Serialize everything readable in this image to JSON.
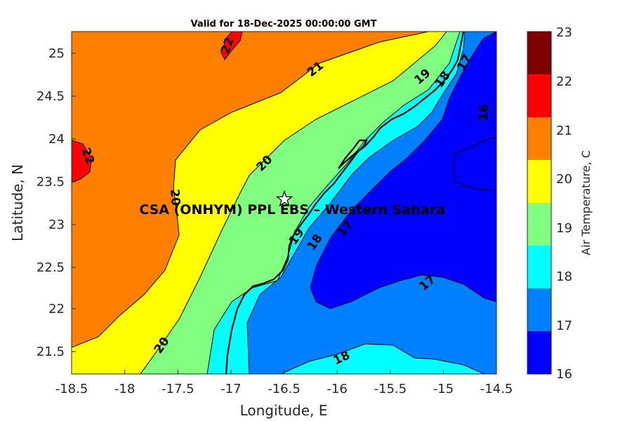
{
  "title": "Valid for 18-Dec-2025 00:00:00 GMT",
  "xlabel": "Longitude, E",
  "ylabel": "Latitude, N",
  "xticks": [
    "-18.5",
    "-18",
    "-17.5",
    "-17",
    "-16.5",
    "-16",
    "-15.5",
    "-15",
    "-14.5"
  ],
  "yticks": [
    "25",
    "24.5",
    "24",
    "23.5",
    "23",
    "22.5",
    "22",
    "21.5"
  ],
  "site_label": "CSA (ONHYM) PPL EBS – Western Sahara",
  "site_marker": {
    "lon": -16.5,
    "lat": 23.3
  },
  "colorbar": {
    "title": "Air Temperature, C",
    "ticks": [
      "23",
      "22",
      "21",
      "20",
      "19",
      "18",
      "17",
      "16"
    ],
    "bands": [
      {
        "range": "22-23",
        "color": "#800000"
      },
      {
        "range": "21-22",
        "color": "#ff0000"
      },
      {
        "range": "20-21",
        "color": "#ff8000"
      },
      {
        "range": "19-20",
        "color": "#ffff00"
      },
      {
        "range": "18-19",
        "color": "#80ff80"
      },
      {
        "range": "17-18",
        "color": "#00ffff"
      },
      {
        "range": "16-17",
        "color": "#0080ff"
      },
      {
        "range": "<16",
        "color": "#0000ff"
      }
    ]
  },
  "contour_labels": {
    "c22a": "22",
    "c22b": "22",
    "c21": "21",
    "c20a": "20",
    "c20b": "20",
    "c20c": "20",
    "c19a": "19",
    "c19b": "19",
    "c18a": "18",
    "c18b": "18",
    "c18c": "18",
    "c17a": "17",
    "c17b": "17",
    "c17c": "17",
    "c16": "16"
  }
}
